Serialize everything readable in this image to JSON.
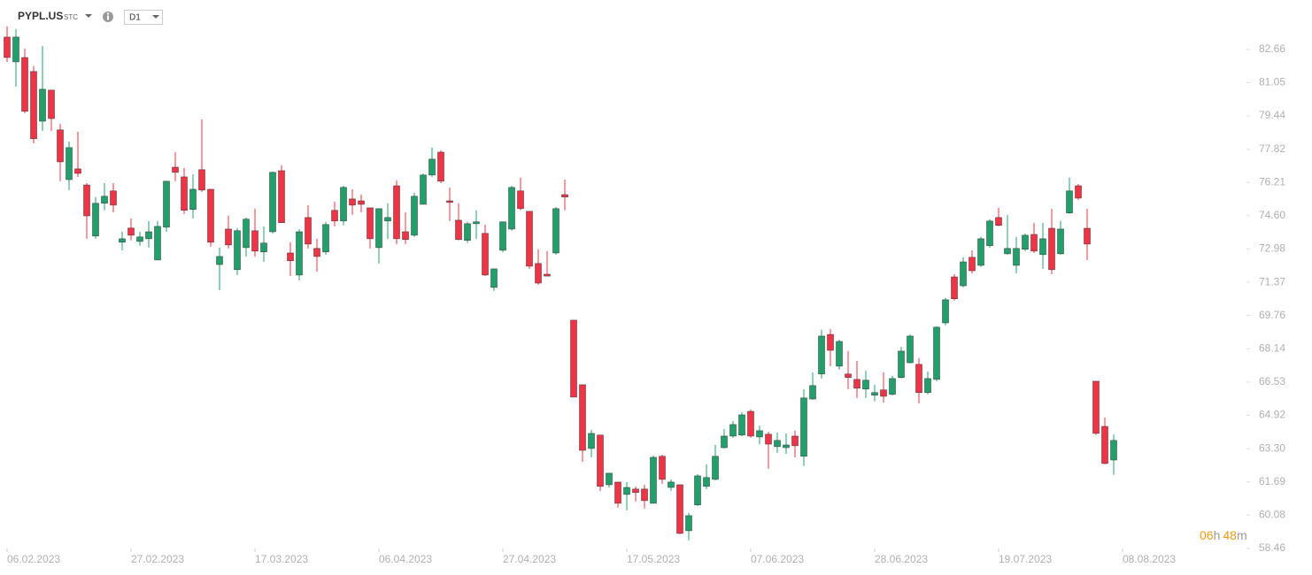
{
  "header": {
    "symbol": "PYPL.US",
    "market": "STC",
    "interval": "D1"
  },
  "countdown": {
    "hours": "06",
    "hours_unit": "h",
    "minutes": "48",
    "minutes_unit": "m"
  },
  "chart_data": {
    "type": "candlestick",
    "up_color": "#22a06b",
    "down_color": "#f23345",
    "ylim": [
      58.46,
      84.63
    ],
    "yticks": [
      82.66,
      81.05,
      79.44,
      77.82,
      76.21,
      {
        "value": 74.6,
        "label": "74.60"
      },
      72.98,
      71.37,
      69.76,
      68.14,
      66.53,
      64.92,
      {
        "value": 63.3,
        "label": "63.30"
      },
      61.69,
      60.08,
      58.46
    ],
    "categories": [
      "06.02.2023",
      null,
      null,
      null,
      null,
      null,
      null,
      null,
      null,
      null,
      null,
      null,
      null,
      null,
      "27.02.2023",
      null,
      null,
      null,
      null,
      null,
      null,
      null,
      null,
      null,
      null,
      null,
      null,
      null,
      "17.03.2023",
      null,
      null,
      null,
      null,
      null,
      null,
      null,
      null,
      null,
      null,
      null,
      null,
      null,
      "06.04.2023",
      null,
      null,
      null,
      null,
      null,
      null,
      null,
      null,
      null,
      null,
      null,
      null,
      null,
      "27.04.2023",
      null,
      null,
      null,
      null,
      null,
      null,
      null,
      null,
      null,
      null,
      null,
      null,
      null,
      "17.05.2023",
      null,
      null,
      null,
      null,
      null,
      null,
      null,
      null,
      null,
      null,
      null,
      null,
      null,
      "07.06.2023",
      null,
      null,
      null,
      null,
      null,
      null,
      null,
      null,
      null,
      null,
      null,
      null,
      null,
      "28.06.2023",
      null,
      null,
      null,
      null,
      null,
      null,
      null,
      null,
      null,
      null,
      null,
      null,
      null,
      "19.07.2023",
      null,
      null,
      null,
      null,
      null,
      null,
      null,
      null,
      null,
      null,
      null,
      null,
      null,
      "08.08.2023"
    ],
    "open": [
      83.26,
      82.06,
      82.27,
      81.59,
      79.18,
      80.69,
      78.76,
      76.35,
      76.87,
      76.09,
      73.61,
      75.2,
      75.8,
      73.31,
      74.0,
      73.35,
      73.48,
      72.45,
      74.04,
      76.95,
      76.48,
      74.9,
      76.83,
      75.88,
      72.23,
      73.95,
      71.98,
      73.05,
      73.87,
      72.84,
      73.82,
      76.78,
      72.79,
      71.72,
      74.51,
      73.01,
      72.84,
      74.86,
      74.34,
      75.41,
      75.32,
      74.98,
      73.05,
      74.34,
      76.05,
      73.82,
      73.65,
      75.15,
      76.57,
      77.68,
      75.32,
      74.38,
      73.4,
      74.21,
      73.74,
      71.12,
      72.92,
      73.95,
      75.8,
      74.81,
      72.28,
      71.76,
      72.79,
      75.62,
      69.53,
      66.4,
      63.31,
      63.96,
      61.55,
      61.68,
      61.08,
      61.34,
      61.34,
      60.65,
      62.93,
      61.42,
      61.55,
      59.32,
      60.57,
      61.47,
      61.81,
      63.35,
      63.91,
      63.96,
      65.11,
      63.87,
      64.0,
      63.4,
      63.35,
      63.91,
      62.93,
      65.71,
      66.92,
      68.84,
      67.3,
      66.92,
      66.66,
      66.19,
      65.89,
      66.15,
      65.93,
      66.75,
      67.47,
      67.39,
      66.02,
      66.66,
      69.4,
      71.63,
      71.2,
      72.58,
      72.19,
      73.14,
      74.51,
      72.75,
      72.19,
      72.97,
      73.69,
      72.71,
      73.99,
      72.75,
      74.73,
      76.05,
      73.99,
      66.57,
      64.38,
      62.75,
      null
    ],
    "high": [
      83.78,
      83.65,
      82.7,
      81.85,
      82.83,
      80.69,
      79.05,
      78.2,
      78.67,
      76.18,
      75.5,
      76.18,
      76.18,
      73.82,
      74.47,
      73.82,
      74.34,
      74.34,
      76.27,
      77.68,
      76.91,
      76.61,
      79.27,
      75.88,
      73.05,
      74.6,
      74.0,
      74.51,
      74.94,
      74.08,
      76.74,
      77.04,
      73.31,
      73.95,
      75.11,
      73.48,
      74.3,
      75.28,
      76.05,
      75.88,
      75.62,
      74.98,
      74.94,
      75.2,
      76.31,
      74.77,
      75.71,
      76.65,
      77.9,
      77.77,
      75.97,
      75.2,
      74.3,
      74.86,
      74.17,
      72.02,
      74.3,
      76.05,
      76.44,
      74.81,
      72.97,
      72.88,
      75.02,
      76.35,
      69.53,
      66.4,
      64.21,
      63.96,
      62.11,
      61.68,
      61.68,
      61.47,
      61.55,
      62.97,
      63.01,
      61.81,
      61.55,
      60.18,
      62.07,
      62.54,
      63.48,
      64.25,
      64.64,
      65.07,
      65.2,
      64.42,
      64.13,
      64.08,
      64.04,
      64.17,
      66.19,
      67.0,
      69.06,
      69.1,
      68.59,
      68.03,
      67.56,
      67.09,
      66.4,
      67.0,
      66.83,
      68.24,
      68.84,
      67.69,
      67.04,
      69.23,
      70.61,
      71.76,
      72.58,
      72.92,
      73.57,
      74.43,
      74.98,
      74.64,
      73.57,
      73.74,
      74.25,
      74.25,
      74.94,
      74.34,
      76.44,
      76.14,
      74.94,
      66.57,
      64.81,
      63.99,
      null
    ],
    "low": [
      82.06,
      80.86,
      79.57,
      78.11,
      78.71,
      78.71,
      76.27,
      75.84,
      76.48,
      73.48,
      73.48,
      74.86,
      74.77,
      72.92,
      73.4,
      73.14,
      73.05,
      72.45,
      73.82,
      76.27,
      74.68,
      74.47,
      75.75,
      73.1,
      70.99,
      73.01,
      71.72,
      72.62,
      72.62,
      72.36,
      73.74,
      74.26,
      71.67,
      71.46,
      73.01,
      71.89,
      72.71,
      74.08,
      74.13,
      74.64,
      74.77,
      73.01,
      72.28,
      73.48,
      73.22,
      73.22,
      73.57,
      75.15,
      76.48,
      76.18,
      74.34,
      73.4,
      73.27,
      73.48,
      71.67,
      70.95,
      72.84,
      73.87,
      74.86,
      72.02,
      71.24,
      71.67,
      72.71,
      74.86,
      65.8,
      62.66,
      62.88,
      61.25,
      61.42,
      60.44,
      60.31,
      60.74,
      60.4,
      60.65,
      61.59,
      61.25,
      59.15,
      58.85,
      60.52,
      61.34,
      61.77,
      63.31,
      63.83,
      63.91,
      63.83,
      63.52,
      62.33,
      63.1,
      63.05,
      62.88,
      62.46,
      65.67,
      66.7,
      67.3,
      67.13,
      66.19,
      65.76,
      65.76,
      65.59,
      65.54,
      65.89,
      66.7,
      67.43,
      65.5,
      65.93,
      66.57,
      69.28,
      70.48,
      71.12,
      71.8,
      72.11,
      73.05,
      74.08,
      72.71,
      71.8,
      72.88,
      72.79,
      72.02,
      71.76,
      72.71,
      74.68,
      75.37,
      72.45,
      63.96,
      62.54,
      62.03,
      null
    ],
    "close": [
      82.27,
      83.26,
      79.66,
      78.33,
      80.73,
      79.31,
      77.21,
      77.9,
      76.65,
      74.59,
      75.2,
      75.54,
      75.11,
      73.48,
      73.65,
      73.57,
      73.82,
      74.08,
      76.27,
      76.7,
      74.86,
      75.88,
      75.84,
      73.31,
      72.62,
      73.18,
      73.87,
      74.43,
      72.88,
      73.27,
      76.7,
      74.26,
      72.41,
      73.82,
      73.22,
      72.62,
      74.17,
      74.34,
      75.97,
      75.11,
      75.15,
      73.48,
      74.94,
      74.51,
      73.48,
      73.44,
      75.54,
      76.57,
      77.34,
      76.27,
      75.24,
      73.44,
      74.21,
      74.3,
      71.72,
      72.02,
      74.3,
      75.97,
      74.94,
      72.15,
      71.33,
      71.67,
      74.94,
      75.5,
      65.8,
      63.22,
      64.04,
      61.47,
      62.11,
      60.65,
      61.42,
      61.17,
      60.78,
      62.88,
      61.81,
      61.68,
      59.19,
      60.05,
      61.98,
      61.9,
      62.93,
      63.91,
      64.47,
      64.94,
      63.91,
      64.17,
      63.52,
      63.7,
      63.48,
      63.44,
      65.76,
      66.36,
      68.76,
      68.07,
      68.5,
      66.75,
      66.23,
      66.62,
      66.02,
      65.84,
      66.7,
      68.03,
      68.76,
      66.02,
      66.7,
      69.19,
      70.52,
      70.57,
      72.36,
      71.93,
      73.48,
      74.34,
      74.13,
      73.01,
      73.01,
      73.65,
      72.88,
      73.48,
      71.98,
      73.95,
      75.8,
      75.45,
      73.22,
      64.04,
      62.58,
      63.7,
      null
    ]
  }
}
